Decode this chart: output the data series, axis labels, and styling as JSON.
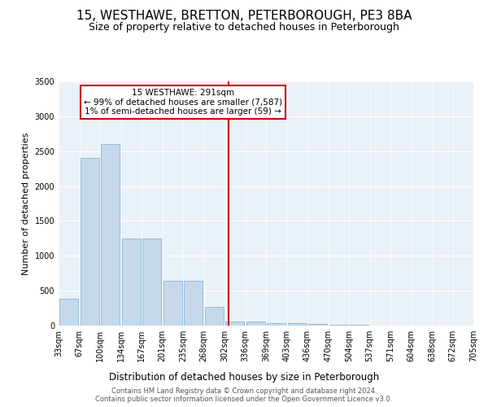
{
  "title": "15, WESTHAWE, BRETTON, PETERBOROUGH, PE3 8BA",
  "subtitle": "Size of property relative to detached houses in Peterborough",
  "xlabel": "Distribution of detached houses by size in Peterborough",
  "ylabel": "Number of detached properties",
  "bar_heights": [
    390,
    2400,
    2600,
    1250,
    1250,
    640,
    640,
    270,
    60,
    55,
    40,
    30,
    20,
    15,
    10,
    5,
    3,
    3,
    2,
    2
  ],
  "bar_labels": [
    "33sqm",
    "67sqm",
    "100sqm",
    "134sqm",
    "167sqm",
    "201sqm",
    "235sqm",
    "268sqm",
    "302sqm",
    "336sqm",
    "369sqm",
    "403sqm",
    "436sqm",
    "470sqm",
    "504sqm",
    "537sqm",
    "571sqm",
    "604sqm",
    "638sqm",
    "672sqm",
    "705sqm"
  ],
  "bar_color": "#c5d9ea",
  "bar_edgecolor": "#8ab6d6",
  "vline_color": "#cc0000",
  "annotation_title": "15 WESTHAWE: 291sqm",
  "annotation_line1": "← 99% of detached houses are smaller (7,587)",
  "annotation_line2": "1% of semi-detached houses are larger (59) →",
  "annotation_box_facecolor": "#ffffff",
  "annotation_box_edgecolor": "#cc0000",
  "ylim": [
    0,
    3500
  ],
  "yticks": [
    0,
    500,
    1000,
    1500,
    2000,
    2500,
    3000,
    3500
  ],
  "background_color": "#eaf1f7",
  "footer1": "Contains HM Land Registry data © Crown copyright and database right 2024.",
  "footer2": "Contains public sector information licensed under the Open Government Licence v3.0.",
  "title_fontsize": 11,
  "subtitle_fontsize": 9,
  "xlabel_fontsize": 8.5,
  "ylabel_fontsize": 8,
  "tick_fontsize": 7,
  "annot_fontsize": 7.5
}
